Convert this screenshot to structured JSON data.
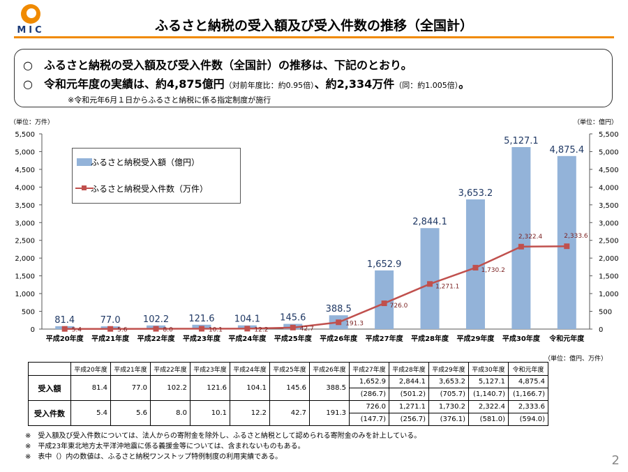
{
  "header": {
    "logo_text": "MIC",
    "title": "ふるさと納税の受入額及び受入件数の推移（全国計）",
    "page_number": "2"
  },
  "summary": {
    "line1": "ふるさと納税の受入額及び受入件数（全国計）の推移は、下記のとおり。",
    "line2_main": "令和元年度の実績は、約4,875億円",
    "line2_sub1": "（対前年度比：約0.95倍）",
    "line2_mid": "、約2,334万件",
    "line2_sub2": "（同：約1.005倍）",
    "line2_end": "。",
    "note": "※令和元年6月１日からふるさと納税に係る指定制度が施行",
    "bullet": "○"
  },
  "chart_data": {
    "type": "bar",
    "categories": [
      "平成20年度",
      "平成21年度",
      "平成22年度",
      "平成23年度",
      "平成24年度",
      "平成25年度",
      "平成26年度",
      "平成27年度",
      "平成28年度",
      "平成29年度",
      "平成30年度",
      "令和元年度"
    ],
    "series": [
      {
        "name": "ふるさと納税受入額（億円）",
        "type": "bar",
        "color": "#93b3d9",
        "values": [
          81.4,
          77.0,
          102.2,
          121.6,
          104.1,
          145.6,
          388.5,
          1652.9,
          2844.1,
          3653.2,
          5127.1,
          4875.4
        ],
        "labels": [
          "81.4",
          "77.0",
          "102.2",
          "121.6",
          "104.1",
          "145.6",
          "388.5",
          "1,652.9",
          "2,844.1",
          "3,653.2",
          "5,127.1",
          "4,875.4"
        ]
      },
      {
        "name": "ふるさと納税受入件数（万件）",
        "type": "line",
        "color": "#c0504d",
        "values": [
          5.4,
          5.6,
          8.0,
          10.1,
          12.2,
          42.7,
          191.3,
          726.0,
          1271.1,
          1730.2,
          2322.4,
          2333.6
        ],
        "labels": [
          "5.4",
          "5.6",
          "8.0",
          "10.1",
          "12.2",
          "42.7",
          "191.3",
          "726.0",
          "1,271.1",
          "1,730.2",
          "2,322.4",
          "2,333.6"
        ]
      }
    ],
    "y_left_label": "（単位：万件）",
    "y_right_label": "（単位：億円）",
    "ylim": [
      0,
      5500
    ],
    "yticks": [
      "0",
      "500",
      "1,000",
      "1,500",
      "2,000",
      "2,500",
      "3,000",
      "3,500",
      "4,000",
      "4,500",
      "5,000",
      "5,500"
    ],
    "legend_position": "top-left",
    "grid": false
  },
  "table": {
    "unit": "（単位：億円、万件）",
    "headers": [
      "平成20年度",
      "平成21年度",
      "平成22年度",
      "平成23年度",
      "平成24年度",
      "平成25年度",
      "平成26年度",
      "平成27年度",
      "平成28年度",
      "平成29年度",
      "平成30年度",
      "令和元年度"
    ],
    "rows": [
      {
        "label": "受入額",
        "main": [
          "81.4",
          "77.0",
          "102.2",
          "121.6",
          "104.1",
          "145.6",
          "388.5",
          "1,652.9",
          "2,844.1",
          "3,653.2",
          "5,127.1",
          "4,875.4"
        ],
        "sub": [
          "",
          "",
          "",
          "",
          "",
          "",
          "",
          "(286.7)",
          "(501.2)",
          "(705.7)",
          "(1,140.7)",
          "(1,166.7)"
        ]
      },
      {
        "label": "受入件数",
        "main": [
          "5.4",
          "5.6",
          "8.0",
          "10.1",
          "12.2",
          "42.7",
          "191.3",
          "726.0",
          "1,271.1",
          "1,730.2",
          "2,322.4",
          "2,333.6"
        ],
        "sub": [
          "",
          "",
          "",
          "",
          "",
          "",
          "",
          "(147.7)",
          "(256.7)",
          "(376.1)",
          "(581.0)",
          "(594.0)"
        ]
      }
    ]
  },
  "footnotes": [
    "※　受入額及び受入件数については、法人からの寄附金を除外し、ふるさと納税として認められる寄附金のみを計上している。",
    "※　平成23年東北地方太平洋沖地震に係る義援金等については、含まれないものもある。",
    "※　表中（）内の数値は、ふるさと納税ワンストップ特例制度の利用実績である。"
  ]
}
